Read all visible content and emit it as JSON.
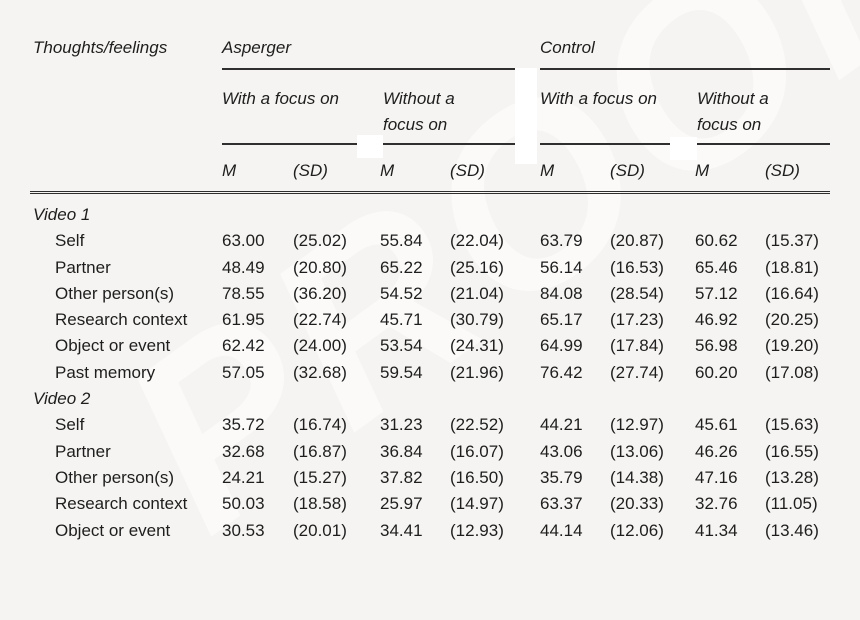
{
  "page": {
    "watermark": "PROOF",
    "colors": {
      "background": "#f5f4f2",
      "text": "#1e1e1e",
      "rule": "#2f2f2f",
      "erase_patch": "#ffffff"
    }
  },
  "table": {
    "row_header": "Thoughts/feelings",
    "groups": [
      {
        "label": "Asperger",
        "subgroups": [
          {
            "label": "With a focus on"
          },
          {
            "label": "Without a focus on"
          }
        ]
      },
      {
        "label": "Control",
        "subgroups": [
          {
            "label": "With a focus on"
          },
          {
            "label": "Without a focus on"
          }
        ]
      }
    ],
    "stat_headers": {
      "mean": "M",
      "sd": "(SD)"
    },
    "sections": [
      {
        "label": "Video 1",
        "rows": [
          {
            "label": "Self",
            "values": [
              "63.00",
              "(25.02)",
              "55.84",
              "(22.04)",
              "63.79",
              "(20.87)",
              "60.62",
              "(15.37)"
            ]
          },
          {
            "label": "Partner",
            "values": [
              "48.49",
              "(20.80)",
              "65.22",
              "(25.16)",
              "56.14",
              "(16.53)",
              "65.46",
              "(18.81)"
            ]
          },
          {
            "label": "Other person(s)",
            "values": [
              "78.55",
              "(36.20)",
              "54.52",
              "(21.04)",
              "84.08",
              "(28.54)",
              "57.12",
              "(16.64)"
            ]
          },
          {
            "label": "Research context",
            "values": [
              "61.95",
              "(22.74)",
              "45.71",
              "(30.79)",
              "65.17",
              "(17.23)",
              "46.92",
              "(20.25)"
            ]
          },
          {
            "label": "Object or event",
            "values": [
              "62.42",
              "(24.00)",
              "53.54",
              "(24.31)",
              "64.99",
              "(17.84)",
              "56.98",
              "(19.20)"
            ]
          },
          {
            "label": "Past memory",
            "values": [
              "57.05",
              "(32.68)",
              "59.54",
              "(21.96)",
              "76.42",
              "(27.74)",
              "60.20",
              "(17.08)"
            ]
          }
        ]
      },
      {
        "label": "Video 2",
        "rows": [
          {
            "label": "Self",
            "values": [
              "35.72",
              "(16.74)",
              "31.23",
              "(22.52)",
              "44.21",
              "(12.97)",
              "45.61",
              "(15.63)"
            ]
          },
          {
            "label": "Partner",
            "values": [
              "32.68",
              "(16.87)",
              "36.84",
              "(16.07)",
              "43.06",
              "(13.06)",
              "46.26",
              "(16.55)"
            ]
          },
          {
            "label": "Other person(s)",
            "values": [
              "24.21",
              "(15.27)",
              "37.82",
              "(16.50)",
              "35.79",
              "(14.38)",
              "47.16",
              "(13.28)"
            ]
          },
          {
            "label": "Research context",
            "values": [
              "50.03",
              "(18.58)",
              "25.97",
              "(14.97)",
              "63.37",
              "(20.33)",
              "32.76",
              "(11.05)"
            ]
          },
          {
            "label": "Object or event",
            "values": [
              "30.53",
              "(20.01)",
              "34.41",
              "(12.93)",
              "44.14",
              "(12.06)",
              "41.34",
              "(13.46)"
            ]
          }
        ]
      }
    ]
  }
}
